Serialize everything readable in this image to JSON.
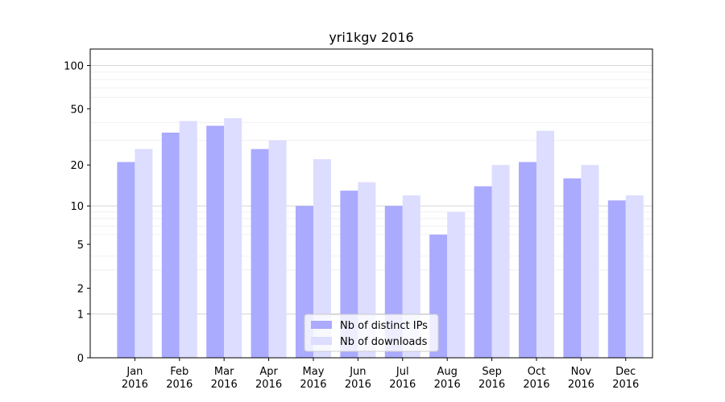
{
  "chart_data": {
    "type": "bar",
    "title": "yri1kgv 2016",
    "xlabel": "",
    "ylabel": "",
    "yscale": "symlog",
    "ylim": [
      0,
      130
    ],
    "y_ticks": [
      "0",
      "1",
      "2",
      "5",
      "10",
      "20",
      "50",
      "100"
    ],
    "grid": "horizontal",
    "legend_position": "bottom-center",
    "categories": [
      "Jan\n2016",
      "Feb\n2016",
      "Mar\n2016",
      "Apr\n2016",
      "May\n2016",
      "Jun\n2016",
      "Jul\n2016",
      "Aug\n2016",
      "Sep\n2016",
      "Oct\n2016",
      "Nov\n2016",
      "Dec\n2016"
    ],
    "series": [
      {
        "name": "Nb of distinct IPs",
        "color": "#aaaaff",
        "values": [
          21,
          34,
          38,
          26,
          10,
          13,
          10,
          6,
          14,
          21,
          16,
          11
        ]
      },
      {
        "name": "Nb of downloads",
        "color": "#ddddff",
        "values": [
          26,
          41,
          43,
          30,
          22,
          15,
          12,
          9,
          20,
          35,
          20,
          12
        ]
      }
    ]
  }
}
